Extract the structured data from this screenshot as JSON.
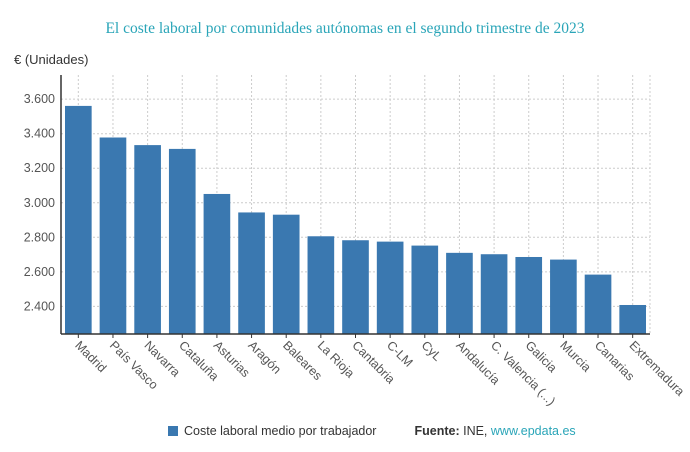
{
  "title": "El coste laboral por comunidades autónomas en el segundo trimestre de 2023",
  "chart_data": {
    "type": "bar",
    "title": "El coste laboral por comunidades autónomas en el segundo trimestre de 2023",
    "ylabel": "€ (Unidades)",
    "xlabel": "",
    "categories": [
      "Madrid",
      "País Vasco",
      "Navarra",
      "Cataluña",
      "Asturias",
      "Aragón",
      "Baleares",
      "La Rioja",
      "Cantabria",
      "C-LM",
      "CyL",
      "Andalucía",
      "C. Valencia (...)",
      "Galicia",
      "Murcia",
      "Canarias",
      "Extremadura"
    ],
    "series": [
      {
        "name": "Coste laboral medio por trabajador",
        "values": [
          3561,
          3378,
          3334,
          3312,
          3051,
          2944,
          2931,
          2806,
          2783,
          2775,
          2752,
          2710,
          2702,
          2686,
          2671,
          2584,
          2408
        ]
      }
    ],
    "ylim": [
      2240,
      3740
    ],
    "yticks": [
      2400,
      2600,
      2800,
      3000,
      3200,
      3400,
      3600
    ],
    "ytick_labels": [
      "2.400",
      "2.600",
      "2.800",
      "3.000",
      "3.200",
      "3.400",
      "3.600"
    ],
    "grid": true,
    "legend_position": "bottom",
    "color": "#3a78b0"
  },
  "source": {
    "label": "Fuente:",
    "text": "INE,",
    "link": "www.epdata.es"
  }
}
